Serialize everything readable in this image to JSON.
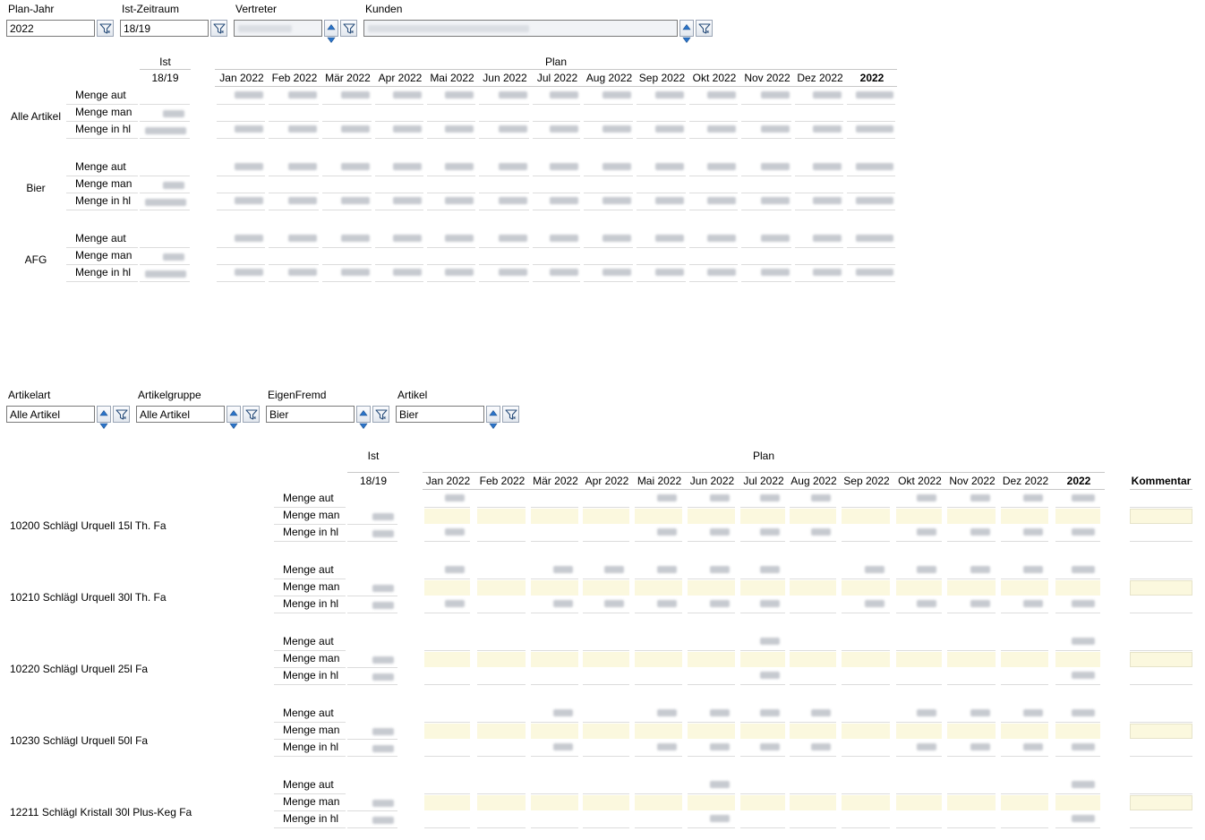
{
  "filters_top": {
    "plan_jahr": {
      "label": "Plan-Jahr",
      "value": "2022"
    },
    "ist_zeitraum": {
      "label": "Ist-Zeitraum",
      "value": "18/19"
    },
    "vertreter": {
      "label": "Vertreter",
      "value": ""
    },
    "kunden": {
      "label": "Kunden",
      "value": ""
    }
  },
  "summary": {
    "ist_label": "Ist",
    "plan_label": "Plan",
    "ist_period": "18/19",
    "months": [
      "Jan 2022",
      "Feb 2022",
      "Mär 2022",
      "Apr 2022",
      "Mai 2022",
      "Jun 2022",
      "Jul 2022",
      "Aug 2022",
      "Sep 2022",
      "Okt 2022",
      "Nov 2022",
      "Dez 2022"
    ],
    "total_label": "2022",
    "groups": [
      {
        "name": "Alle Artikel",
        "rows": [
          "Menge aut",
          "Menge man",
          "Menge in hl"
        ]
      },
      {
        "name": "Bier",
        "rows": [
          "Menge aut",
          "Menge man",
          "Menge in hl"
        ]
      },
      {
        "name": "AFG",
        "rows": [
          "Menge aut",
          "Menge man",
          "Menge in hl"
        ]
      }
    ]
  },
  "filters_bottom": {
    "artikelart": {
      "label": "Artikelart",
      "value": "Alle Artikel"
    },
    "artikelgruppe": {
      "label": "Artikelgruppe",
      "value": "Alle Artikel"
    },
    "eigenfremd": {
      "label": "EigenFremd",
      "value": "Bier"
    },
    "artikel": {
      "label": "Artikel",
      "value": "Bier"
    }
  },
  "detail": {
    "ist_label": "Ist",
    "plan_label": "Plan",
    "ist_period": "18/19",
    "months": [
      "Jan 2022",
      "Feb 2022",
      "Mär 2022",
      "Apr 2022",
      "Mai 2022",
      "Jun 2022",
      "Jul 2022",
      "Aug 2022",
      "Sep 2022",
      "Okt 2022",
      "Nov 2022",
      "Dez 2022"
    ],
    "total_label": "2022",
    "kommentar_label": "Kommentar",
    "articles": [
      {
        "name": "10200 Schlägl Urquell 15l Th. Fa",
        "rows": [
          "Menge aut",
          "Menge man",
          "Menge in hl"
        ],
        "filled": [
          0,
          4,
          5,
          6,
          7,
          9,
          10,
          11,
          12
        ]
      },
      {
        "name": "10210 Schlägl Urquell 30l Th. Fa",
        "rows": [
          "Menge aut",
          "Menge man",
          "Menge in hl"
        ],
        "filled": [
          0,
          2,
          3,
          4,
          5,
          6,
          8,
          9,
          10,
          11,
          12
        ]
      },
      {
        "name": "10220 Schlägl Urquell 25l Fa",
        "rows": [
          "Menge aut",
          "Menge man",
          "Menge in hl"
        ],
        "filled": [
          6,
          12
        ]
      },
      {
        "name": "10230 Schlägl Urquell 50l Fa",
        "rows": [
          "Menge aut",
          "Menge man",
          "Menge in hl"
        ],
        "filled": [
          2,
          4,
          5,
          6,
          7,
          9,
          10,
          11,
          12
        ]
      },
      {
        "name": "12211 Schlägl Kristall 30l Plus-Keg Fa",
        "rows": [
          "Menge aut",
          "Menge man",
          "Menge in hl"
        ],
        "filled": [
          5,
          12
        ]
      }
    ]
  },
  "icons": {
    "filter": "filter-funnel-icon",
    "spin": "up-down-spinner-icon"
  }
}
